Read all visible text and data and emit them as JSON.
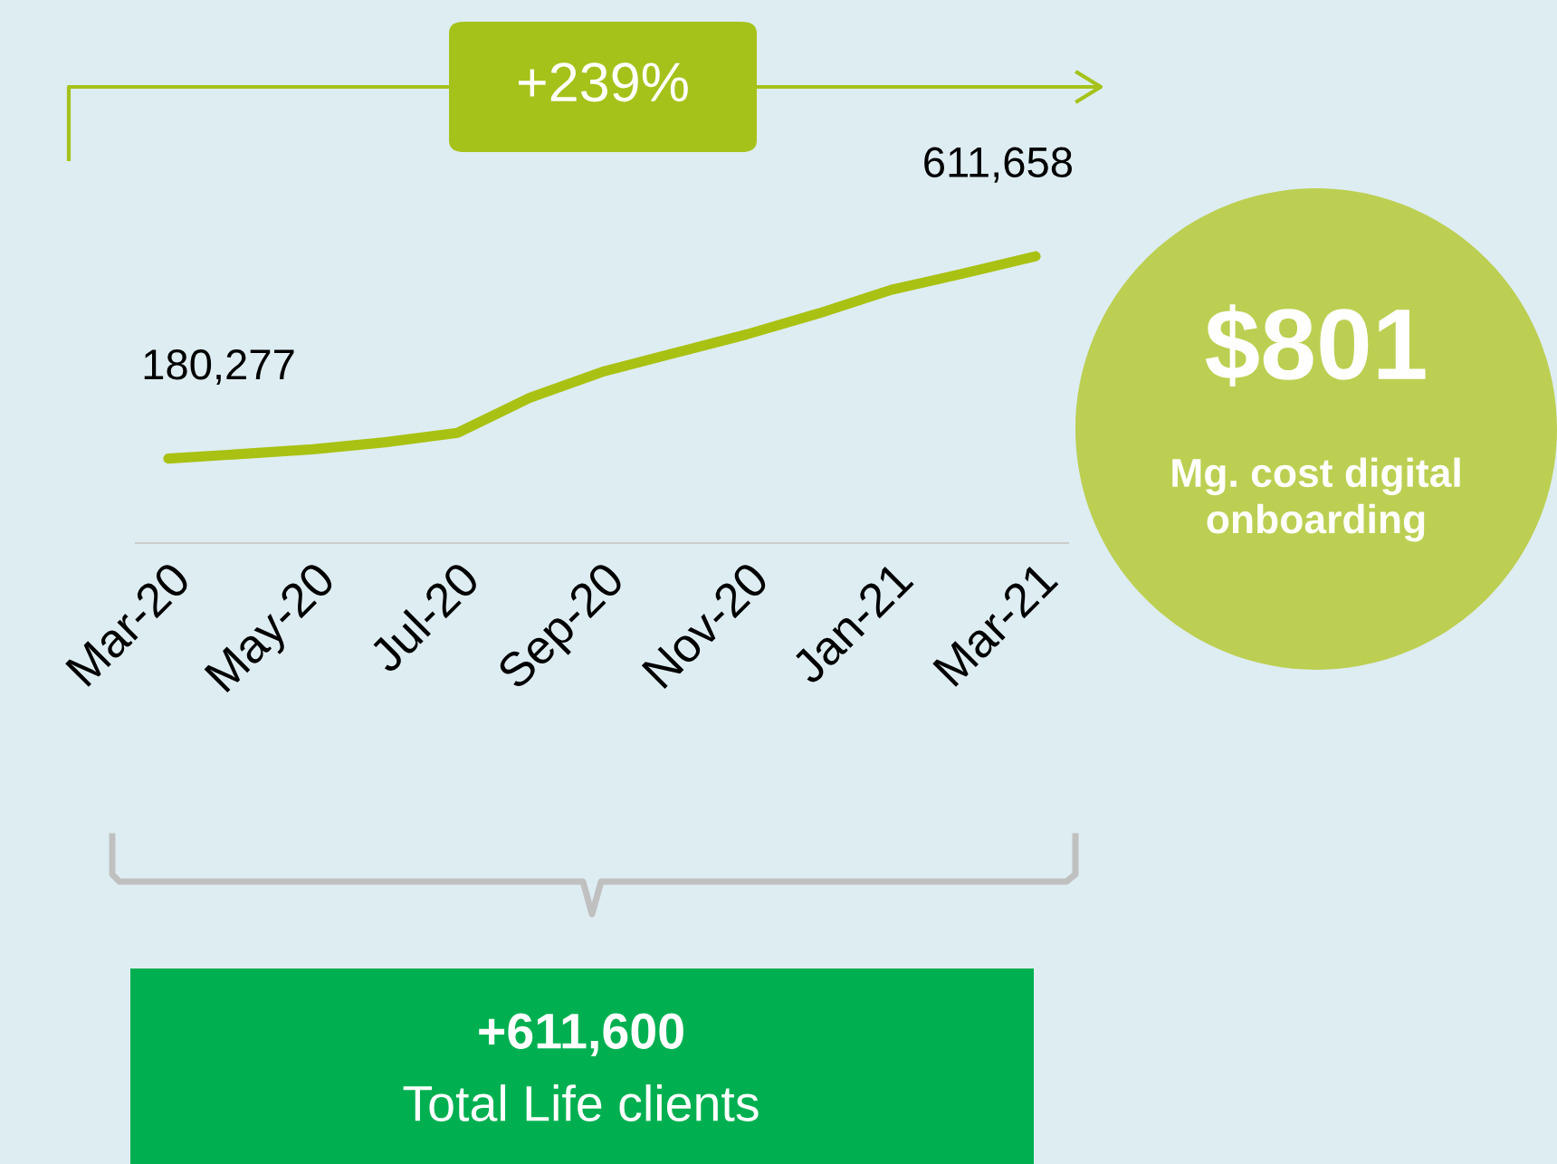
{
  "chart_data": {
    "type": "line",
    "categories": [
      "Mar-20",
      null,
      "May-20",
      null,
      "Jul-20",
      null,
      "Sep-20",
      null,
      "Nov-20",
      null,
      "Jan-21",
      null,
      "Mar-21"
    ],
    "series": [
      {
        "color": "#a9c112",
        "values": [
          180277,
          190000,
          200000,
          215000,
          235000,
          310000,
          365000,
          405000,
          445000,
          490000,
          540000,
          575000,
          611658
        ],
        "value_labels": [
          "180,277",
          null,
          null,
          null,
          null,
          null,
          null,
          null,
          null,
          null,
          null,
          null,
          "611,658"
        ]
      }
    ],
    "tick_labels": "x",
    "grid": false,
    "legend": false,
    "marker": "none",
    "line_style": "solid",
    "annotations": [
      "+239%",
      "$801",
      "Mg. cost digital\nonboarding",
      "+611,600",
      "Total Life clients"
    ]
  }
}
